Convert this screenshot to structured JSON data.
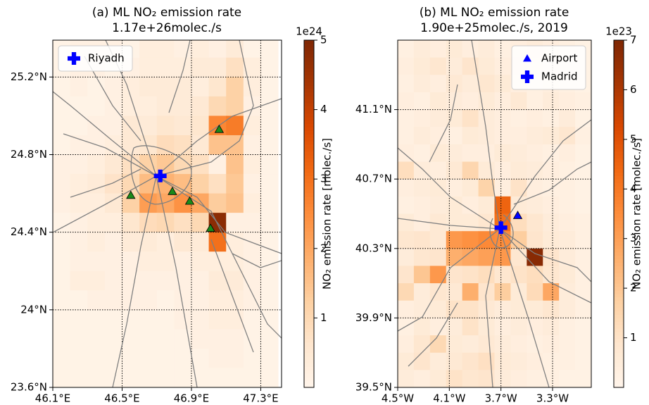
{
  "chart_data": [
    {
      "type": "heatmap",
      "title": "(a) ML NO₂ emission rate",
      "subtitle": "1.17e+26molec./s",
      "xlim": [
        46.1,
        47.42
      ],
      "ylim": [
        23.6,
        25.39
      ],
      "xticks": [
        {
          "value": 46.1,
          "label": "46.1°E"
        },
        {
          "value": 46.5,
          "label": "46.5°E"
        },
        {
          "value": 46.9,
          "label": "46.9°E"
        },
        {
          "value": 47.3,
          "label": "47.3°E"
        }
      ],
      "yticks": [
        {
          "value": 23.6,
          "label": "23.6°N"
        },
        {
          "value": 24,
          "label": "24°N"
        },
        {
          "value": 24.4,
          "label": "24.4°N"
        },
        {
          "value": 24.8,
          "label": "24.8°N"
        },
        {
          "value": 25.2,
          "label": "25.2°N"
        }
      ],
      "grid": true,
      "legend": "upper left",
      "colormap": [
        "#fff5eb",
        "#fee6ce",
        "#fdd0a2",
        "#fdae6b",
        "#fd8d3c",
        "#f16913",
        "#d94801",
        "#a63603",
        "#7f2704"
      ],
      "colorbar": {
        "vlim": [
          0,
          5
        ],
        "ticks": [
          1,
          2,
          3,
          4,
          5
        ],
        "scale_label": "1e24",
        "label": "NO₂ emission rate [molec./s]"
      },
      "x": [
        46.15,
        46.25,
        46.35,
        46.45,
        46.55,
        46.65,
        46.75,
        46.85,
        46.95,
        47.05,
        47.15,
        47.25,
        47.35
      ],
      "y": [
        25.35,
        25.25,
        25.15,
        25.05,
        24.95,
        24.85,
        24.75,
        24.65,
        24.55,
        24.45,
        24.35,
        24.25,
        24.15,
        24.05,
        23.95,
        23.85,
        23.75,
        23.65
      ],
      "z": [
        [
          0.1,
          0.2,
          0.2,
          0.2,
          0.1,
          0.3,
          0.3,
          0.2,
          0.3,
          0.2,
          0.4,
          0.1,
          0.1
        ],
        [
          0.1,
          0.2,
          0.2,
          0.1,
          0.2,
          0.3,
          0.3,
          0.3,
          0.4,
          0.4,
          0.8,
          0.3,
          0.1
        ],
        [
          0.1,
          0.2,
          0.1,
          0.2,
          0.3,
          0.4,
          0.4,
          0.4,
          0.3,
          0.6,
          1.2,
          0.3,
          0.1
        ],
        [
          0.1,
          0.1,
          0.1,
          0.2,
          0.3,
          0.3,
          0.4,
          0.4,
          0.5,
          1.0,
          1.2,
          0.2,
          0.1
        ],
        [
          0.1,
          0.1,
          0.2,
          0.2,
          0.5,
          0.4,
          0.6,
          0.5,
          0.6,
          2.6,
          2.8,
          0.3,
          0.1
        ],
        [
          0.1,
          0.2,
          0.2,
          0.3,
          0.5,
          0.6,
          0.9,
          0.8,
          0.5,
          1.5,
          1.5,
          0.2,
          0.1
        ],
        [
          0.2,
          0.2,
          0.3,
          0.5,
          0.8,
          1.2,
          1.4,
          1.0,
          0.8,
          0.2,
          1.5,
          0.3,
          0.1
        ],
        [
          0.2,
          0.3,
          0.4,
          0.7,
          1.0,
          1.6,
          1.8,
          1.6,
          1.2,
          0.8,
          1.4,
          0.2,
          0.1
        ],
        [
          0.2,
          0.3,
          0.3,
          0.5,
          1.2,
          2.2,
          2.0,
          2.4,
          2.0,
          1.3,
          1.5,
          0.3,
          0.1
        ],
        [
          0.1,
          0.2,
          0.3,
          0.3,
          0.6,
          0.9,
          1.0,
          0.8,
          1.0,
          4.8,
          0.2,
          0.2,
          0.1
        ],
        [
          0.1,
          0.2,
          0.3,
          0.2,
          0.4,
          0.4,
          0.3,
          0.5,
          0.4,
          3.0,
          0.3,
          0.2,
          0.1
        ],
        [
          0.1,
          0.2,
          0.2,
          0.2,
          0.2,
          0.3,
          0.3,
          0.2,
          0.3,
          0.3,
          0.3,
          0.2,
          0.1
        ],
        [
          0.1,
          0.3,
          0.3,
          0.2,
          0.2,
          0.2,
          0.2,
          0.2,
          0.2,
          0.4,
          0.4,
          0.2,
          0.1
        ],
        [
          0.1,
          0.1,
          0.2,
          0.2,
          0.2,
          0.2,
          0.1,
          0.2,
          0.2,
          0.3,
          0.3,
          0.2,
          0.1
        ],
        [
          0.1,
          0.1,
          0.1,
          0.1,
          0.1,
          0.1,
          0.1,
          0.2,
          0.2,
          0.3,
          0.3,
          0.1,
          0.1
        ],
        [
          0.1,
          0.1,
          0.1,
          0.1,
          0.1,
          0.1,
          0.1,
          0.1,
          0.2,
          0.2,
          0.2,
          0.1,
          0.1
        ],
        [
          0.1,
          0.1,
          0.1,
          0.1,
          0.1,
          0.1,
          0.1,
          0.1,
          0.1,
          0.2,
          0.2,
          0.1,
          0.1
        ],
        [
          0.1,
          0.1,
          0.1,
          0.1,
          0.1,
          0.1,
          0.1,
          0.1,
          0.1,
          0.1,
          0.1,
          0.1,
          0.1
        ]
      ],
      "series": [
        {
          "marker": "triangle",
          "color": "#1a8a1a",
          "x": [
            47.06,
            46.55,
            46.79,
            46.89,
            47.01
          ],
          "y": [
            24.93,
            24.59,
            24.61,
            24.56,
            24.42
          ]
        },
        {
          "name": "Riyadh",
          "marker": "plus",
          "color": "#0000ff",
          "x": [
            46.72
          ],
          "y": [
            24.69
          ]
        }
      ]
    },
    {
      "type": "heatmap",
      "title": "(b) ML NO₂ emission rate",
      "subtitle": "1.90e+25molec./s, 2019",
      "xlim": [
        -4.5,
        -3.0
      ],
      "ylim": [
        39.5,
        41.5
      ],
      "xticks": [
        {
          "value": -4.5,
          "label": "4.5°W"
        },
        {
          "value": -4.1,
          "label": "4.1°W"
        },
        {
          "value": -3.7,
          "label": "3.7°W"
        },
        {
          "value": -3.3,
          "label": "3.3°W"
        }
      ],
      "yticks": [
        {
          "value": 39.5,
          "label": "39.5°N"
        },
        {
          "value": 39.9,
          "label": "39.9°N"
        },
        {
          "value": 40.3,
          "label": "40.3°N"
        },
        {
          "value": 40.7,
          "label": "40.7°N"
        },
        {
          "value": 41.1,
          "label": "41.1°N"
        }
      ],
      "grid": true,
      "legend": "upper right",
      "colormap": [
        "#fff5eb",
        "#fee6ce",
        "#fdd0a2",
        "#fdae6b",
        "#fd8d3c",
        "#f16913",
        "#d94801",
        "#a63603",
        "#7f2704"
      ],
      "colorbar": {
        "vlim": [
          0,
          7
        ],
        "ticks": [
          1,
          2,
          3,
          4,
          5,
          6,
          7
        ],
        "scale_label": "1e23",
        "label": "NO₂ emission rate [molec./s]"
      },
      "x": [
        -4.4375,
        -4.3125,
        -4.1875,
        -4.0625,
        -3.9375,
        -3.8125,
        -3.6875,
        -3.5625,
        -3.4375,
        -3.3125,
        -3.1875,
        -3.0625
      ],
      "y": [
        41.45,
        41.35,
        41.25,
        41.15,
        41.05,
        40.95,
        40.85,
        40.75,
        40.65,
        40.55,
        40.45,
        40.35,
        40.25,
        40.15,
        40.05,
        39.95,
        39.85,
        39.75,
        39.65,
        39.55
      ],
      "z": [
        [
          0.3,
          0.5,
          0.4,
          0.6,
          0.4,
          0.5,
          0.3,
          0.4,
          0.5,
          0.4,
          0.3,
          0.2
        ],
        [
          0.4,
          0.6,
          0.8,
          0.5,
          0.9,
          0.6,
          0.4,
          0.5,
          0.4,
          0.3,
          0.3,
          0.2
        ],
        [
          0.3,
          0.5,
          0.4,
          0.7,
          0.5,
          0.8,
          0.6,
          0.4,
          0.3,
          0.4,
          0.3,
          0.2
        ],
        [
          0.4,
          0.3,
          0.6,
          0.5,
          0.4,
          0.6,
          0.4,
          0.7,
          0.3,
          0.5,
          0.4,
          0.3
        ],
        [
          0.3,
          0.4,
          0.5,
          0.6,
          1.0,
          0.5,
          0.4,
          0.3,
          0.4,
          0.3,
          0.5,
          0.2
        ],
        [
          0.3,
          0.5,
          0.4,
          0.3,
          0.6,
          0.5,
          0.4,
          0.4,
          0.5,
          0.6,
          0.8,
          0.3
        ],
        [
          0.4,
          0.3,
          0.6,
          0.5,
          0.4,
          0.4,
          0.6,
          0.5,
          0.4,
          0.3,
          0.4,
          0.2
        ],
        [
          1.2,
          0.5,
          0.4,
          0.7,
          1.5,
          0.6,
          0.4,
          0.6,
          0.5,
          0.4,
          0.3,
          0.2
        ],
        [
          0.4,
          0.5,
          0.6,
          0.4,
          0.6,
          1.6,
          0.4,
          1.0,
          0.4,
          0.3,
          0.3,
          0.2
        ],
        [
          0.3,
          0.4,
          0.5,
          0.6,
          0.4,
          0.6,
          4.5,
          0.6,
          0.5,
          0.4,
          0.3,
          0.2
        ],
        [
          0.6,
          0.4,
          0.7,
          0.6,
          0.6,
          0.8,
          4.2,
          1.2,
          0.8,
          0.5,
          0.4,
          0.3
        ],
        [
          0.8,
          0.9,
          0.7,
          3.2,
          3.4,
          3.6,
          3.5,
          1.8,
          0.9,
          0.6,
          0.5,
          0.3
        ],
        [
          0.5,
          0.8,
          0.9,
          2.6,
          2.8,
          3.0,
          3.2,
          0.8,
          6.8,
          0.9,
          0.5,
          0.3
        ],
        [
          0.9,
          2.0,
          3.2,
          0.9,
          1.0,
          1.2,
          0.8,
          1.0,
          1.2,
          0.8,
          0.6,
          0.3
        ],
        [
          1.4,
          0.5,
          0.8,
          0.7,
          2.6,
          0.9,
          1.8,
          0.6,
          1.3,
          2.8,
          0.5,
          0.3
        ],
        [
          0.4,
          0.5,
          0.6,
          1.0,
          1.0,
          0.7,
          0.5,
          0.6,
          0.6,
          0.8,
          0.5,
          0.3
        ],
        [
          0.3,
          0.6,
          0.4,
          0.5,
          1.0,
          0.6,
          0.4,
          0.5,
          0.4,
          0.5,
          0.3,
          0.2
        ],
        [
          0.4,
          0.8,
          1.4,
          0.6,
          0.5,
          0.7,
          0.5,
          0.4,
          0.3,
          0.4,
          0.3,
          0.2
        ],
        [
          0.6,
          0.9,
          0.5,
          0.7,
          0.9,
          1.1,
          0.6,
          0.5,
          0.4,
          0.3,
          0.3,
          0.2
        ],
        [
          0.5,
          0.4,
          0.6,
          1.0,
          0.8,
          0.9,
          0.5,
          0.4,
          0.3,
          0.3,
          0.2,
          0.2
        ]
      ],
      "series": [
        {
          "name": "Airport",
          "marker": "triangle",
          "color": "#0000ff",
          "x": [
            -3.57
          ],
          "y": [
            40.49
          ]
        },
        {
          "name": "Madrid",
          "marker": "plus",
          "color": "#0000ff",
          "x": [
            -3.7
          ],
          "y": [
            40.42
          ]
        }
      ]
    }
  ]
}
